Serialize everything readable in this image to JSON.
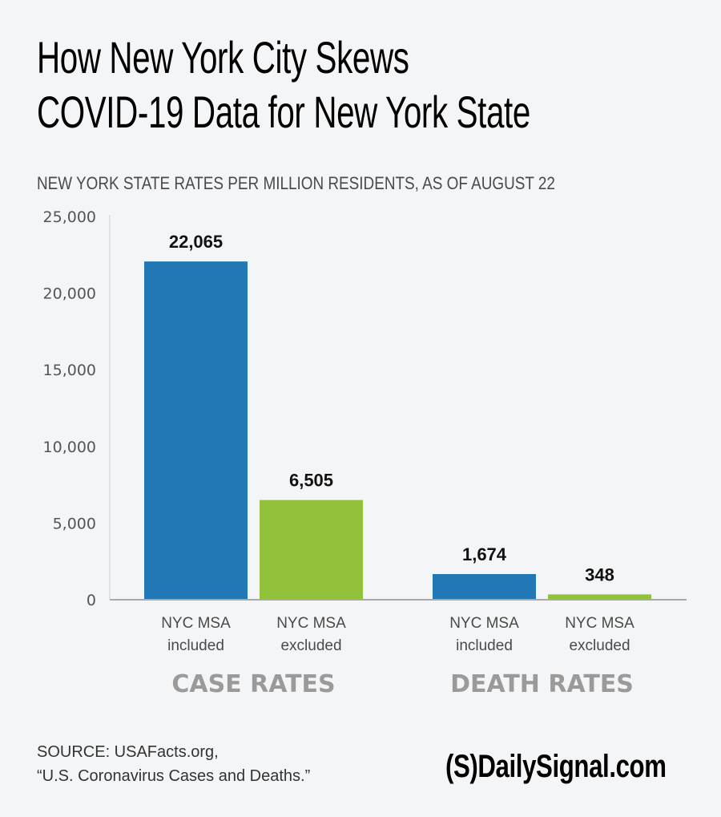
{
  "header": {
    "title_line1": "How New York City Skews",
    "title_line2": "COVID-19 Data for New York State",
    "subtitle": "NEW YORK STATE RATES PER MILLION RESIDENTS, AS OF AUGUST 22"
  },
  "chart_data": {
    "type": "bar",
    "title": "How New York City Skews COVID-19 Data for New York State",
    "subtitle": "NEW YORK STATE RATES PER MILLION RESIDENTS, AS OF AUGUST 22",
    "xlabel": "",
    "ylabel": "",
    "ylim": [
      0,
      25000
    ],
    "yticks": [
      0,
      5000,
      10000,
      15000,
      20000,
      25000
    ],
    "ytick_labels": [
      "0",
      "5,000",
      "10,000",
      "15,000",
      "20,000",
      "25,000"
    ],
    "grid": false,
    "groups": [
      {
        "label": "CASE RATES",
        "bars": [
          {
            "category": "NYC MSA included",
            "line1": "NYC MSA",
            "line2": "included",
            "value": 22065,
            "label": "22,065",
            "color": "#2277b5"
          },
          {
            "category": "NYC MSA excluded",
            "line1": "NYC MSA",
            "line2": "excluded",
            "value": 6505,
            "label": "6,505",
            "color": "#92c13b"
          }
        ]
      },
      {
        "label": "DEATH RATES",
        "bars": [
          {
            "category": "NYC MSA included",
            "line1": "NYC MSA",
            "line2": "included",
            "value": 1674,
            "label": "1,674",
            "color": "#2277b5"
          },
          {
            "category": "NYC MSA excluded",
            "line1": "NYC MSA",
            "line2": "excluded",
            "value": 348,
            "label": "348",
            "color": "#92c13b"
          }
        ]
      }
    ]
  },
  "footer": {
    "source_line1": "SOURCE: USAFacts.org,",
    "source_line2": "“U.S. Coronavirus Cases and Deaths.”",
    "logo": "(S)DailySignal.com"
  }
}
